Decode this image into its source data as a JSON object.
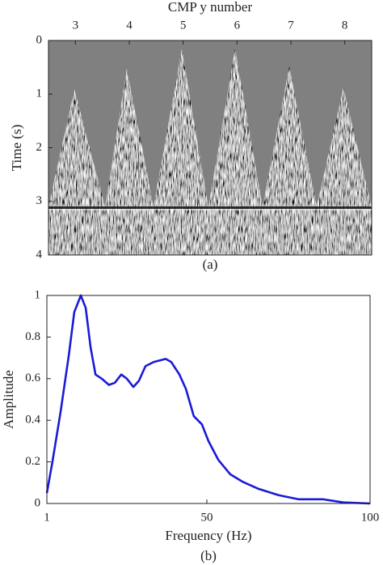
{
  "chart_data": [
    {
      "type": "image",
      "xlabel": "CMP y number",
      "ylabel": "Time (s)",
      "caption": "(a)",
      "x_axis_position": "top",
      "xlim": [
        2.5,
        8.5
      ],
      "xticks": [
        3,
        4,
        5,
        6,
        7,
        8
      ],
      "ylim": [
        0,
        4
      ],
      "y_reversed": true,
      "yticks": [
        0,
        1,
        2,
        3,
        4
      ]
    },
    {
      "type": "line",
      "xlabel": "Frequency (Hz)",
      "ylabel": "Amplitude",
      "caption": "(b)",
      "x_axis_position": "bottom",
      "xlim": [
        1,
        100
      ],
      "xticks": [
        1,
        50,
        100
      ],
      "ylim": [
        0,
        1
      ],
      "yticks": [
        0,
        0.2,
        0.4,
        0.6,
        0.8,
        1
      ],
      "x": [
        1,
        2.7,
        5.2,
        7.7,
        9.4,
        11.4,
        12.9,
        14.4,
        15.9,
        17.8,
        20,
        21.8,
        23.8,
        25.5,
        27.5,
        29.2,
        31.2,
        33.7,
        37.4,
        39.1,
        41.6,
        43.6,
        46,
        48.5,
        50.5,
        53.5,
        57.2,
        60.9,
        65.9,
        72,
        78.2,
        85.7,
        91.8,
        100
      ],
      "series": [
        {
          "color": "#1a1ad8",
          "values": [
            0.05,
            0.2,
            0.44,
            0.71,
            0.92,
            1.0,
            0.94,
            0.75,
            0.62,
            0.6,
            0.57,
            0.58,
            0.62,
            0.6,
            0.56,
            0.59,
            0.66,
            0.68,
            0.695,
            0.68,
            0.62,
            0.55,
            0.42,
            0.38,
            0.3,
            0.21,
            0.14,
            0.105,
            0.07,
            0.04,
            0.02,
            0.02,
            0.005,
            0.0
          ]
        }
      ]
    }
  ]
}
